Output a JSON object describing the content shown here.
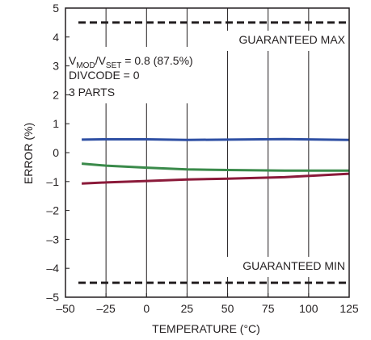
{
  "chart_data": {
    "type": "line",
    "title": "",
    "xlabel": "TEMPERATURE (°C)",
    "ylabel": "ERROR (%)",
    "xlim": [
      -50,
      125
    ],
    "ylim": [
      -5,
      5
    ],
    "xticks": [
      -50,
      -25,
      0,
      25,
      50,
      75,
      100,
      125
    ],
    "yticks": [
      -5,
      -4,
      -3,
      -2,
      -1,
      0,
      1,
      2,
      3,
      4,
      5
    ],
    "xtick_labels": [
      "–50",
      "–25",
      "0",
      "25",
      "50",
      "75",
      "100",
      "125"
    ],
    "ytick_labels": [
      "–5",
      "–4",
      "–3",
      "–2",
      "–1",
      "0",
      "1",
      "2",
      "3",
      "4",
      "5"
    ],
    "grid": "vertical",
    "limits": [
      {
        "label": "GUARANTEED MAX",
        "value": 4.5
      },
      {
        "label": "GUARANTEED MIN",
        "value": -4.5
      }
    ],
    "annotation": {
      "line1_v": "V",
      "line1_sub1": "MOD",
      "line1_slash": "/V",
      "line1_sub2": "SET",
      "line1_rest": " = 0.8 (87.5%)",
      "line2": "DIVCODE = 0",
      "line3": "3 PARTS"
    },
    "series": [
      {
        "color": "#2e4fa3",
        "x": [
          -40,
          -25,
          0,
          25,
          50,
          85,
          125
        ],
        "y": [
          0.45,
          0.46,
          0.46,
          0.44,
          0.45,
          0.47,
          0.44
        ]
      },
      {
        "color": "#3a8a4a",
        "x": [
          -40,
          -25,
          0,
          25,
          50,
          85,
          125
        ],
        "y": [
          -0.38,
          -0.45,
          -0.52,
          -0.58,
          -0.6,
          -0.62,
          -0.62
        ]
      },
      {
        "color": "#8b1a3a",
        "x": [
          -40,
          -25,
          0,
          25,
          50,
          85,
          125
        ],
        "y": [
          -1.07,
          -1.03,
          -0.98,
          -0.93,
          -0.9,
          -0.85,
          -0.73
        ]
      }
    ]
  }
}
